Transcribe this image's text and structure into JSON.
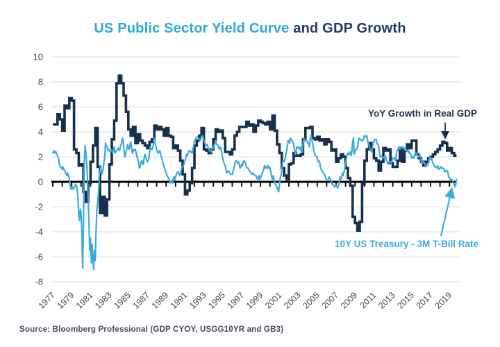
{
  "title": {
    "primary": "US Public Sector Yield Curve",
    "secondary": " and GDP Growth"
  },
  "source": {
    "text": "Source: Bloomberg Professional (GDP CYOY, USGG10YR and GB3)"
  },
  "colors": {
    "title_primary": "#2ca8e0",
    "title_secondary": "#1e3a6d",
    "gdp_line": "#16304e",
    "spread_line": "#3aabdf",
    "axis": "#000000",
    "grid": "#dcdcdc",
    "tick_label": "#3f4650"
  },
  "chart_data": {
    "type": "line",
    "title": "US Public Sector Yield Curve and GDP Growth",
    "xlabel": "",
    "ylabel": "",
    "ylim": [
      -8,
      10
    ],
    "yticks": [
      10,
      8,
      6,
      4,
      2,
      0,
      -2,
      -4,
      -6,
      -8
    ],
    "xtick_years": [
      1977,
      1979,
      1981,
      1983,
      1985,
      1987,
      1989,
      1991,
      1993,
      1995,
      1997,
      1999,
      2001,
      2003,
      2005,
      2007,
      2009,
      2011,
      2013,
      2015,
      2017,
      2019
    ],
    "x_range": [
      1977,
      2019.75
    ],
    "grid": "horizontal",
    "legend_position": "annotations-on-chart",
    "series": [
      {
        "id": "gdp-yoy",
        "name": "YoY Growth in Real GDP",
        "type": "step",
        "color": "#16304e",
        "start": 1977,
        "interval": 0.25,
        "values": [
          4.6,
          4.6,
          5.4,
          5.0,
          4.1,
          6.1,
          5.9,
          6.7,
          6.5,
          2.6,
          2.3,
          1.3,
          1.4,
          -0.8,
          -1.6,
          -0.1,
          1.6,
          2.9,
          4.3,
          1.2,
          -2.5,
          -1.2,
          -2.7,
          -1.4,
          1.4,
          3.4,
          4.9,
          7.9,
          8.5,
          7.9,
          6.9,
          5.6,
          4.2,
          3.7,
          4.4,
          3.1,
          3.8,
          3.3,
          3.1,
          2.9,
          2.7,
          3.2,
          3.4,
          4.5,
          4.2,
          4.4,
          4.2,
          3.7,
          4.3,
          3.7,
          3.6,
          2.7,
          2.9,
          2.5,
          1.7,
          0.6,
          -1.0,
          -0.7,
          -0.1,
          1.1,
          2.9,
          3.3,
          3.7,
          4.3,
          2.6,
          2.5,
          2.3,
          2.6,
          3.4,
          4.2,
          4.0,
          4.1,
          3.5,
          2.4,
          2.4,
          2.2,
          2.6,
          3.7,
          4.0,
          4.4,
          4.4,
          4.4,
          4.8,
          4.5,
          4.6,
          4.0,
          4.5,
          4.9,
          4.8,
          4.7,
          4.6,
          4.8,
          4.2,
          5.3,
          4.1,
          3.0,
          2.3,
          1.1,
          0.5,
          0.2,
          1.4,
          1.5,
          2.3,
          2.1,
          2.1,
          2.2,
          3.4,
          4.3,
          4.3,
          4.4,
          3.5,
          3.4,
          3.6,
          3.3,
          3.4,
          3.0,
          3.4,
          3.2,
          2.5,
          2.6,
          1.6,
          1.9,
          2.2,
          2.0,
          1.1,
          0.3,
          -0.3,
          -2.8,
          -3.3,
          -3.9,
          -3.2,
          -0.2,
          1.7,
          2.6,
          3.1,
          2.6,
          1.9,
          1.7,
          0.9,
          1.6,
          2.7,
          2.5,
          2.6,
          1.5,
          1.2,
          1.2,
          1.7,
          2.7,
          1.6,
          2.5,
          3.0,
          2.7,
          3.3,
          3.3,
          2.2,
          1.9,
          1.6,
          1.3,
          1.6,
          1.9,
          2.0,
          2.2,
          2.4,
          2.6,
          2.9,
          3.2,
          3.1,
          2.5,
          2.7,
          2.3,
          2.1
        ]
      },
      {
        "id": "10y-3m-spread",
        "name": "10Y US Treasury - 3M T-Bill Rate",
        "type": "line",
        "color": "#3aabdf",
        "start": 1977,
        "interval": 0.0833333,
        "values": [
          2.3,
          2.4,
          2.5,
          2.3,
          2.4,
          2.2,
          2.1,
          1.9,
          1.6,
          1.2,
          1.2,
          1.1,
          1.0,
          1.2,
          1.0,
          0.9,
          0.8,
          0.6,
          0.5,
          0.7,
          0.5,
          0.3,
          -0.3,
          -0.6,
          -0.5,
          -0.4,
          -0.6,
          -0.5,
          -0.4,
          -0.2,
          -0.3,
          -0.6,
          -1.3,
          -2.6,
          -3.1,
          -2.2,
          -2.5,
          -4.2,
          -6.9,
          -3.5,
          1.5,
          2.9,
          2.4,
          1.5,
          0.4,
          -1.4,
          -3.4,
          -5.5,
          -4.5,
          -6.5,
          -5.0,
          -6.0,
          -7.0,
          -5.5,
          -6.3,
          -4.0,
          -2.2,
          -1.7,
          -1.0,
          0.5,
          0.9,
          1.3,
          0.6,
          0.7,
          1.0,
          1.6,
          2.0,
          3.1,
          2.9,
          2.8,
          2.5,
          2.6,
          2.5,
          2.4,
          2.6,
          2.5,
          2.3,
          2.5,
          2.8,
          2.3,
          2.4,
          2.5,
          2.6,
          2.7,
          2.6,
          2.5,
          2.9,
          3.0,
          3.3,
          3.5,
          2.9,
          2.2,
          2.0,
          2.4,
          2.6,
          3.0,
          2.7,
          2.6,
          2.9,
          3.2,
          2.8,
          2.3,
          2.4,
          2.6,
          2.5,
          2.6,
          2.3,
          2.0,
          1.8,
          1.6,
          1.1,
          1.2,
          1.5,
          1.7,
          1.5,
          1.4,
          1.9,
          2.2,
          2.0,
          1.8,
          1.6,
          1.7,
          1.8,
          2.4,
          2.8,
          2.6,
          2.6,
          2.7,
          3.1,
          3.5,
          3.0,
          2.9,
          2.6,
          2.4,
          2.3,
          2.4,
          2.5,
          2.2,
          2.0,
          1.8,
          1.5,
          1.3,
          1.1,
          0.9,
          0.7,
          0.5,
          0.4,
          0.3,
          0.2,
          -0.1,
          0.1,
          0.0,
          -0.1,
          0.2,
          0.4,
          0.1,
          0.4,
          0.6,
          0.7,
          0.8,
          0.7,
          0.5,
          0.6,
          0.9,
          1.1,
          1.2,
          1.3,
          1.5,
          1.7,
          1.9,
          2.2,
          2.1,
          2.3,
          2.5,
          2.5,
          2.4,
          2.4,
          2.3,
          2.6,
          2.9,
          3.2,
          3.4,
          3.5,
          3.6,
          3.6,
          3.5,
          3.4,
          3.3,
          3.4,
          3.6,
          3.7,
          3.6,
          3.3,
          3.2,
          3.0,
          2.9,
          3.0,
          2.8,
          2.7,
          2.5,
          2.4,
          2.4,
          2.6,
          2.7,
          2.7,
          2.9,
          3.1,
          3.3,
          3.0,
          3.0,
          2.9,
          2.7,
          2.6,
          2.8,
          2.6,
          2.2,
          1.9,
          1.6,
          1.4,
          1.3,
          1.0,
          0.7,
          0.8,
          0.9,
          0.8,
          0.7,
          0.6,
          0.6,
          0.6,
          0.8,
          1.1,
          1.4,
          1.6,
          1.7,
          1.6,
          1.5,
          1.6,
          1.4,
          1.1,
          1.2,
          1.4,
          1.3,
          1.6,
          1.7,
          1.6,
          1.5,
          1.2,
          1.1,
          1.1,
          1.0,
          0.9,
          0.8,
          0.7,
          0.6,
          0.7,
          0.6,
          0.6,
          0.5,
          0.5,
          0.4,
          0.2,
          0.2,
          0.5,
          0.2,
          0.3,
          0.5,
          0.7,
          0.8,
          1.0,
          1.3,
          1.1,
          1.2,
          1.1,
          1.3,
          1.1,
          1.2,
          1.1,
          0.8,
          0.4,
          0.2,
          0.5,
          0.2,
          0.0,
          -0.2,
          -0.3,
          -0.5,
          -0.6,
          -0.8,
          -0.2,
          0.3,
          0.5,
          1.0,
          1.6,
          1.7,
          1.6,
          1.8,
          2.2,
          2.4,
          2.8,
          3.3,
          3.3,
          3.1,
          3.5,
          3.4,
          3.3,
          3.2,
          3.0,
          2.7,
          2.2,
          2.3,
          2.8,
          2.7,
          2.8,
          2.7,
          2.6,
          2.8,
          2.4,
          2.4,
          3.0,
          3.5,
          3.3,
          3.3,
          3.3,
          3.3,
          3.1,
          3.1,
          2.8,
          3.4,
          3.7,
          3.4,
          3.1,
          2.8,
          2.4,
          2.2,
          2.1,
          2.0,
          1.9,
          1.6,
          1.7,
          1.6,
          1.2,
          1.0,
          0.9,
          0.8,
          0.7,
          0.6,
          0.5,
          0.3,
          0.2,
          0.1,
          0.1,
          0.4,
          0.3,
          0.2,
          0.0,
          -0.2,
          -0.2,
          -0.3,
          -0.4,
          -0.4,
          -0.3,
          -0.4,
          -0.5,
          -0.3,
          -0.1,
          0.4,
          0.2,
          0.4,
          0.7,
          0.5,
          0.8,
          1.1,
          1.5,
          1.8,
          2.2,
          2.3,
          2.2,
          2.2,
          2.4,
          2.1,
          2.4,
          3.2,
          3.5,
          2.2,
          2.4,
          2.6,
          2.6,
          2.7,
          3.1,
          3.5,
          3.4,
          3.4,
          3.3,
          3.3,
          3.3,
          3.5,
          3.7,
          3.6,
          3.6,
          3.7,
          3.3,
          3.1,
          2.9,
          2.6,
          2.6,
          2.4,
          2.6,
          3.2,
          3.2,
          3.4,
          3.4,
          3.4,
          3.1,
          3.0,
          2.9,
          2.3,
          2.0,
          2.1,
          2.0,
          2.0,
          1.9,
          1.9,
          2.1,
          2.0,
          1.7,
          1.6,
          1.4,
          1.6,
          1.6,
          1.6,
          1.5,
          1.7,
          1.9,
          1.9,
          1.9,
          1.7,
          1.9,
          2.4,
          2.5,
          2.7,
          2.8,
          2.6,
          2.7,
          2.8,
          2.8,
          2.7,
          2.7,
          2.7,
          2.5,
          2.6,
          2.5,
          2.4,
          2.5,
          2.3,
          2.3,
          2.2,
          1.9,
          2.0,
          2.0,
          1.9,
          2.2,
          2.3,
          2.3,
          2.1,
          2.1,
          2.0,
          2.2,
          2.1,
          1.8,
          1.4,
          1.6,
          1.6,
          1.5,
          1.4,
          1.2,
          1.3,
          1.3,
          1.4,
          1.7,
          2.0,
          1.9,
          1.9,
          1.7,
          1.5,
          1.4,
          1.2,
          1.2,
          1.2,
          1.1,
          1.3,
          1.1,
          1.0,
          1.1,
          1.2,
          1.1,
          1.1,
          1.1,
          1.0,
          0.9,
          0.8,
          0.9,
          0.9,
          0.8,
          0.4,
          0.3,
          0.2,
          0.1,
          0.2,
          0.1,
          -0.1,
          -0.2,
          -0.4,
          -0.2,
          0.2
        ]
      }
    ],
    "annotations": [
      {
        "text": "YoY Growth in Real GDP",
        "color": "#16304e",
        "arrow_from": [
          2018.55,
          4.75
        ],
        "arrow_to": [
          2018.55,
          3.5
        ]
      },
      {
        "text": "10Y US Treasury - 3M T-Bill Rate",
        "color": "#3aabdf",
        "arrow_from": [
          2018.1,
          -4.35
        ],
        "arrow_to": [
          2019.25,
          -0.55
        ]
      }
    ]
  }
}
